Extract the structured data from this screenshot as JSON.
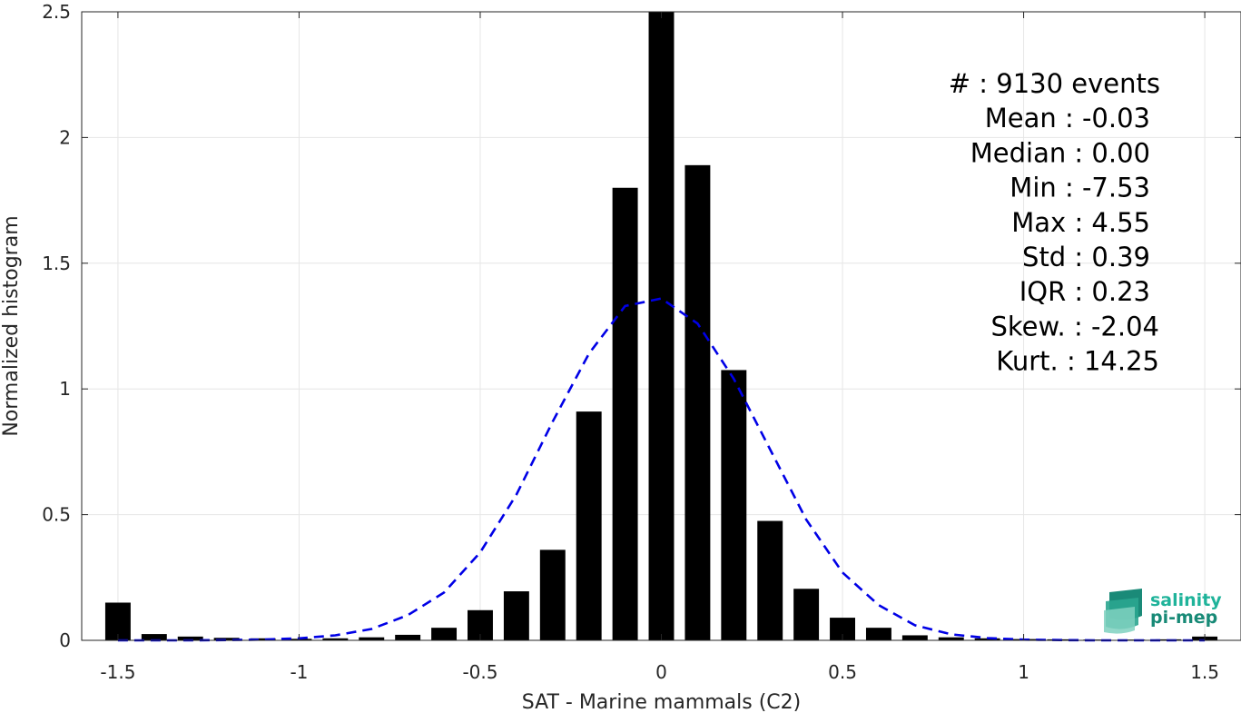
{
  "chart_data": {
    "type": "bar",
    "xlabel": "SAT - Marine mammals (C2)",
    "ylabel": "Normalized histogram",
    "xlim": [
      -1.6,
      1.6
    ],
    "ylim": [
      0,
      2.5
    ],
    "grid": true,
    "x_ticks": [
      -1.5,
      -1,
      -0.5,
      0,
      0.5,
      1,
      1.5
    ],
    "x_tick_labels": [
      "-1.5",
      "-1",
      "-0.5",
      "0",
      "0.5",
      "1",
      "1.5"
    ],
    "y_ticks": [
      0,
      0.5,
      1,
      1.5,
      2,
      2.5
    ],
    "y_tick_labels": [
      "0",
      "0.5",
      "1",
      "1.5",
      "2",
      "2.5"
    ],
    "bar_color": "#000000",
    "bins": [
      -1.5,
      -1.4,
      -1.3,
      -1.2,
      -1.1,
      -1.0,
      -0.9,
      -0.8,
      -0.7,
      -0.6,
      -0.5,
      -0.4,
      -0.3,
      -0.2,
      -0.1,
      0.0,
      0.1,
      0.2,
      0.3,
      0.4,
      0.5,
      0.6,
      0.7,
      0.8,
      0.9,
      1.0,
      1.1,
      1.2,
      1.3,
      1.4,
      1.5
    ],
    "values": [
      0.15,
      0.025,
      0.015,
      0.01,
      0.008,
      0.006,
      0.008,
      0.012,
      0.022,
      0.05,
      0.12,
      0.195,
      0.36,
      0.91,
      1.8,
      2.5,
      1.89,
      1.075,
      0.475,
      0.205,
      0.09,
      0.05,
      0.02,
      0.012,
      0.008,
      0.005,
      0.004,
      0.003,
      0.003,
      0.004,
      0.015
    ],
    "gaussian_fit": {
      "style": "dashed",
      "color": "#0000e6",
      "x": [
        -1.5,
        -1.4,
        -1.3,
        -1.2,
        -1.1,
        -1.0,
        -0.9,
        -0.8,
        -0.7,
        -0.6,
        -0.5,
        -0.4,
        -0.3,
        -0.2,
        -0.1,
        0.0,
        0.1,
        0.2,
        0.3,
        0.4,
        0.5,
        0.6,
        0.7,
        0.8,
        0.9,
        1.0,
        1.1,
        1.2,
        1.3,
        1.4,
        1.5
      ],
      "y": [
        0.0,
        0.0,
        0.0,
        0.001,
        0.003,
        0.008,
        0.02,
        0.045,
        0.1,
        0.19,
        0.35,
        0.58,
        0.87,
        1.14,
        1.33,
        1.36,
        1.26,
        1.04,
        0.76,
        0.48,
        0.27,
        0.14,
        0.06,
        0.024,
        0.009,
        0.003,
        0.001,
        0.0,
        0.0,
        0.0,
        0.0
      ]
    },
    "stats": [
      {
        "label": "#  : 9130 events"
      },
      {
        "label": "Mean : -0.03"
      },
      {
        "label": "Median : 0.00"
      },
      {
        "label": "Min : -7.53"
      },
      {
        "label": "Max : 4.55"
      },
      {
        "label": "Std : 0.39"
      },
      {
        "label": "IQR : 0.23"
      },
      {
        "label": "Skew. : -2.04"
      },
      {
        "label": "Kurt. : 14.25"
      }
    ],
    "logo": {
      "line1": "salinity",
      "line2": "pi-mep"
    }
  }
}
